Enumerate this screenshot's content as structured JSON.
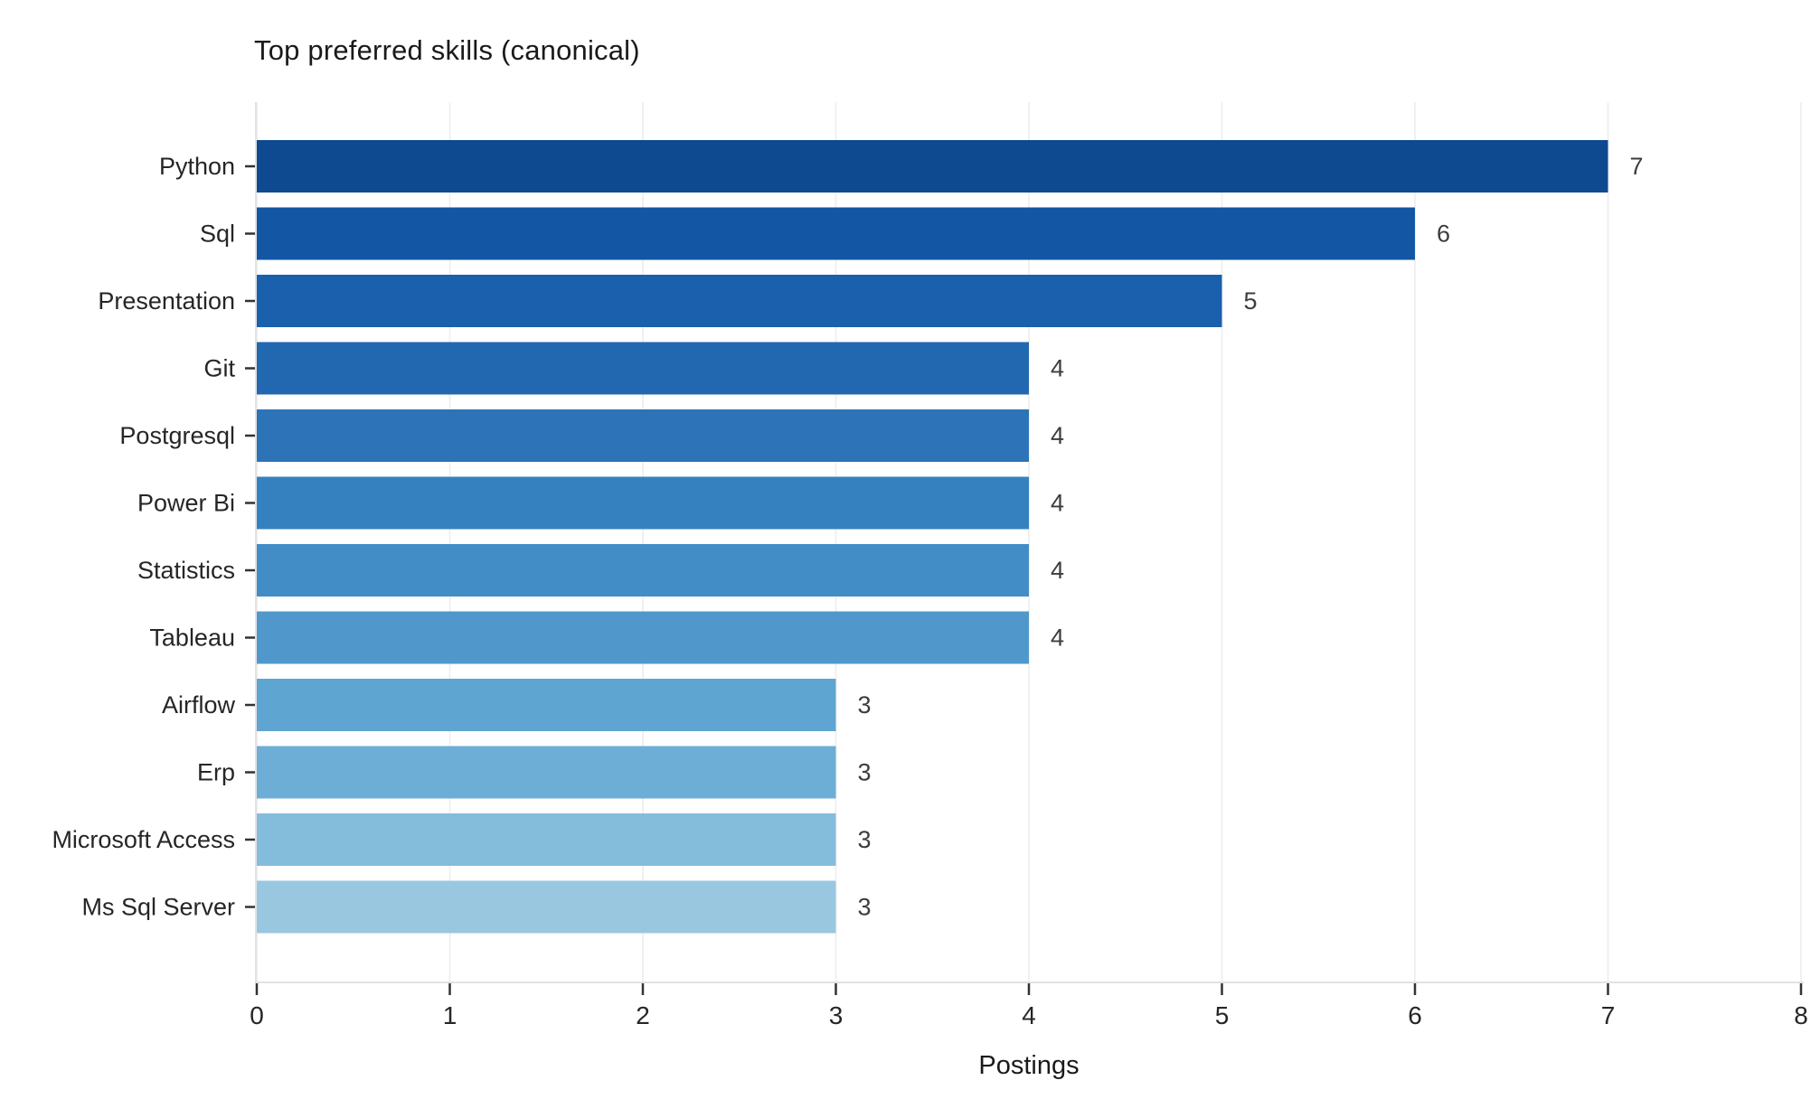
{
  "chart_data": {
    "type": "bar",
    "orientation": "horizontal",
    "title": "Top preferred skills (canonical)",
    "xlabel": "Postings",
    "ylabel": "",
    "categories": [
      "Python",
      "Sql",
      "Presentation",
      "Git",
      "Postgresql",
      "Power Bi",
      "Statistics",
      "Tableau",
      "Airflow",
      "Erp",
      "Microsoft Access",
      "Ms Sql Server"
    ],
    "values": [
      7,
      6,
      5,
      4,
      4,
      4,
      4,
      4,
      3,
      3,
      3,
      3
    ],
    "value_labels": [
      "7",
      "6",
      "5",
      "4",
      "4",
      "4",
      "4",
      "4",
      "3",
      "3",
      "3",
      "3"
    ],
    "bar_colors": [
      "#0d4a90",
      "#1256a4",
      "#1b60ac",
      "#2268b0",
      "#2c73b7",
      "#3581bf",
      "#428dc6",
      "#5098cb",
      "#5fa5d1",
      "#6caed6",
      "#84bcdc",
      "#99c7e0"
    ],
    "x_ticks": [
      0,
      1,
      2,
      3,
      4,
      5,
      6,
      7,
      8
    ],
    "xlim": [
      0,
      8
    ],
    "grid": true,
    "legend": "none",
    "background_color": "#ffffff",
    "grid_color": "#f0f0f0",
    "spine_color": "#e2e2e2",
    "tick_mark_color": "#333333",
    "tick_label_color": "#262626",
    "value_label_color": "#3d3d3d"
  }
}
